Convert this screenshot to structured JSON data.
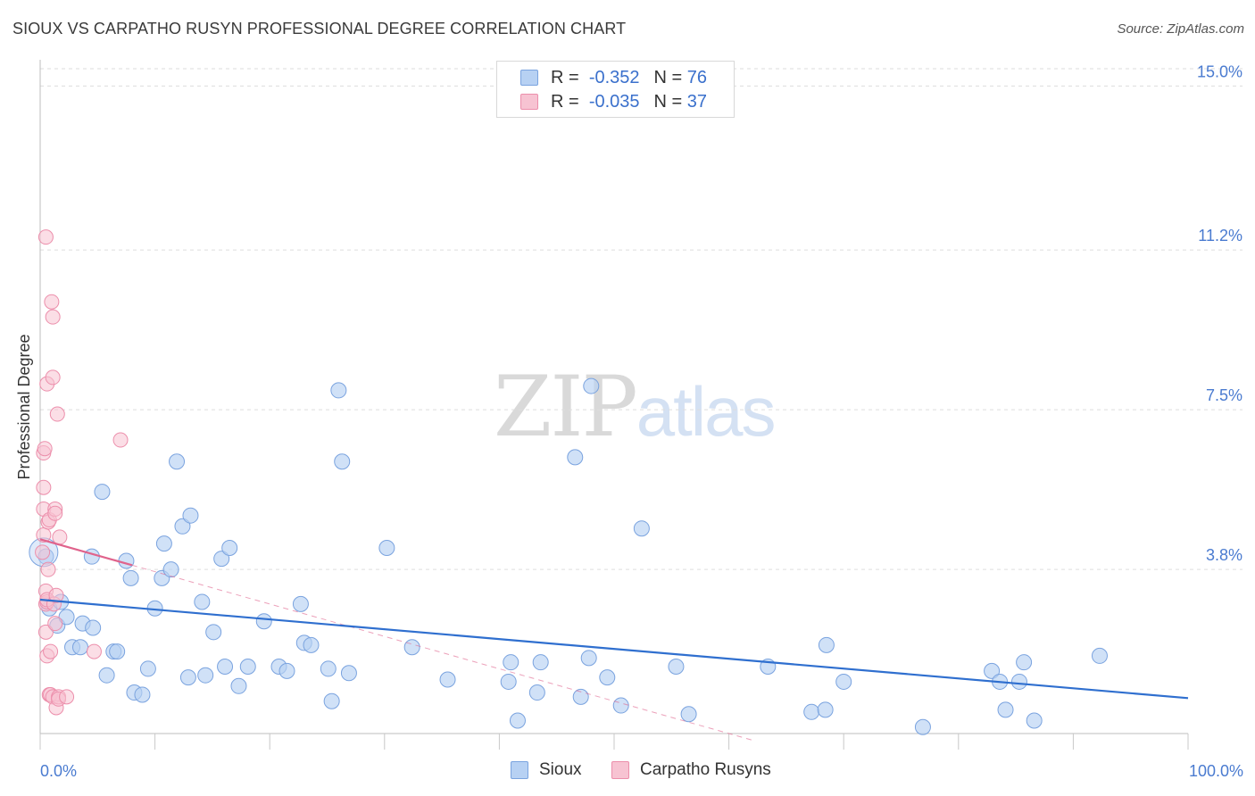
{
  "title": "SIOUX VS CARPATHO RUSYN PROFESSIONAL DEGREE CORRELATION CHART",
  "source": "Source: ZipAtlas.com",
  "watermark": {
    "part1": "ZIP",
    "part2": "atlas"
  },
  "legend": [
    {
      "r_label": "R =",
      "r_value": "-0.352",
      "n_label": "N =",
      "n_value": "76"
    },
    {
      "r_label": "R =",
      "r_value": "-0.035",
      "n_label": "N =",
      "n_value": "37"
    }
  ],
  "bottom_legend": {
    "sioux": "Sioux",
    "carpatho": "Carpatho Rusyns"
  },
  "colors": {
    "sioux_fill": "#b7d1f3",
    "sioux_stroke": "#7aa3df",
    "sioux_line": "#2f6fcf",
    "carpatho_fill": "#f7c3d2",
    "carpatho_stroke": "#ec8eab",
    "carpatho_line": "#e0638c",
    "tick_text": "#4a7bd0",
    "grid": "#dddddd"
  },
  "chart_data": {
    "type": "scatter",
    "title": "SIOUX VS CARPATHO RUSYN PROFESSIONAL DEGREE CORRELATION CHART",
    "xlabel": "",
    "ylabel": "Professional Degree",
    "xlim": [
      0,
      100
    ],
    "ylim": [
      0,
      15.4
    ],
    "x_tick_labels": [
      "0.0%",
      "100.0%"
    ],
    "y_ticks": [
      3.8,
      7.5,
      11.2,
      15.0
    ],
    "y_tick_labels": [
      "3.8%",
      "7.5%",
      "11.2%",
      "15.0%"
    ],
    "series": [
      {
        "name": "Sioux",
        "r": -0.352,
        "n": 76,
        "trend": {
          "x": [
            0,
            100
          ],
          "y": [
            3.1,
            0.82
          ]
        },
        "points": [
          [
            0.5,
            4.1
          ],
          [
            0.8,
            2.9
          ],
          [
            1.5,
            2.5
          ],
          [
            1.8,
            3.05
          ],
          [
            2.3,
            2.7
          ],
          [
            2.8,
            2.0
          ],
          [
            3.5,
            2.0
          ],
          [
            3.7,
            2.55
          ],
          [
            4.5,
            4.1
          ],
          [
            4.6,
            2.45
          ],
          [
            5.4,
            5.6
          ],
          [
            5.8,
            1.35
          ],
          [
            6.4,
            1.9
          ],
          [
            6.7,
            1.9
          ],
          [
            7.5,
            4.0
          ],
          [
            7.9,
            3.6
          ],
          [
            8.2,
            0.95
          ],
          [
            8.9,
            0.9
          ],
          [
            9.4,
            1.5
          ],
          [
            10.0,
            2.9
          ],
          [
            10.6,
            3.6
          ],
          [
            10.8,
            4.4
          ],
          [
            11.4,
            3.8
          ],
          [
            11.9,
            6.3
          ],
          [
            12.4,
            4.8
          ],
          [
            12.9,
            1.3
          ],
          [
            13.1,
            5.05
          ],
          [
            14.1,
            3.05
          ],
          [
            14.4,
            1.35
          ],
          [
            15.1,
            2.35
          ],
          [
            15.8,
            4.05
          ],
          [
            16.1,
            1.55
          ],
          [
            16.5,
            4.3
          ],
          [
            17.3,
            1.1
          ],
          [
            18.1,
            1.55
          ],
          [
            19.5,
            2.6
          ],
          [
            20.8,
            1.55
          ],
          [
            21.5,
            1.45
          ],
          [
            22.7,
            3.0
          ],
          [
            23.0,
            2.1
          ],
          [
            23.6,
            2.05
          ],
          [
            25.1,
            1.5
          ],
          [
            25.4,
            0.75
          ],
          [
            26.0,
            7.95
          ],
          [
            26.3,
            6.3
          ],
          [
            26.9,
            1.4
          ],
          [
            30.2,
            4.3
          ],
          [
            32.4,
            2.0
          ],
          [
            35.5,
            1.25
          ],
          [
            40.8,
            1.2
          ],
          [
            41.0,
            1.65
          ],
          [
            41.6,
            0.3
          ],
          [
            43.3,
            0.95
          ],
          [
            43.6,
            1.65
          ],
          [
            46.6,
            6.4
          ],
          [
            47.1,
            0.85
          ],
          [
            47.8,
            1.75
          ],
          [
            48.0,
            8.05
          ],
          [
            49.4,
            1.3
          ],
          [
            50.6,
            0.65
          ],
          [
            52.4,
            4.75
          ],
          [
            55.4,
            1.55
          ],
          [
            56.5,
            0.45
          ],
          [
            63.4,
            1.55
          ],
          [
            67.2,
            0.5
          ],
          [
            68.4,
            0.55
          ],
          [
            68.5,
            2.05
          ],
          [
            70.0,
            1.2
          ],
          [
            76.9,
            0.15
          ],
          [
            82.9,
            1.45
          ],
          [
            83.6,
            1.2
          ],
          [
            84.1,
            0.55
          ],
          [
            85.3,
            1.2
          ],
          [
            85.7,
            1.65
          ],
          [
            86.6,
            0.3
          ],
          [
            92.3,
            1.8
          ]
        ]
      },
      {
        "name": "Carpatho Rusyns",
        "r": -0.035,
        "n": 37,
        "trend": {
          "x": [
            0,
            8
          ],
          "y": [
            4.5,
            3.9
          ]
        },
        "trend_extension": {
          "x": [
            8,
            62
          ],
          "y": [
            3.9,
            -0.15
          ]
        },
        "points": [
          [
            0.2,
            4.2
          ],
          [
            0.3,
            5.2
          ],
          [
            0.3,
            4.6
          ],
          [
            0.3,
            6.5
          ],
          [
            0.3,
            5.7
          ],
          [
            0.4,
            6.6
          ],
          [
            0.5,
            3.3
          ],
          [
            0.5,
            3.0
          ],
          [
            0.5,
            2.35
          ],
          [
            0.5,
            11.5
          ],
          [
            0.6,
            8.1
          ],
          [
            0.6,
            3.05
          ],
          [
            0.6,
            3.1
          ],
          [
            0.6,
            1.8
          ],
          [
            0.7,
            4.9
          ],
          [
            0.7,
            3.8
          ],
          [
            0.8,
            0.9
          ],
          [
            0.8,
            4.95
          ],
          [
            0.9,
            0.9
          ],
          [
            0.9,
            1.9
          ],
          [
            1.0,
            10.0
          ],
          [
            1.1,
            0.85
          ],
          [
            1.1,
            8.25
          ],
          [
            1.1,
            9.65
          ],
          [
            1.2,
            3.0
          ],
          [
            1.3,
            5.2
          ],
          [
            1.3,
            5.1
          ],
          [
            1.3,
            2.55
          ],
          [
            1.4,
            3.2
          ],
          [
            1.4,
            0.6
          ],
          [
            1.5,
            7.4
          ],
          [
            1.6,
            0.85
          ],
          [
            1.6,
            0.8
          ],
          [
            1.7,
            4.55
          ],
          [
            2.3,
            0.85
          ],
          [
            4.7,
            1.9
          ],
          [
            7.0,
            6.8
          ]
        ]
      }
    ]
  }
}
